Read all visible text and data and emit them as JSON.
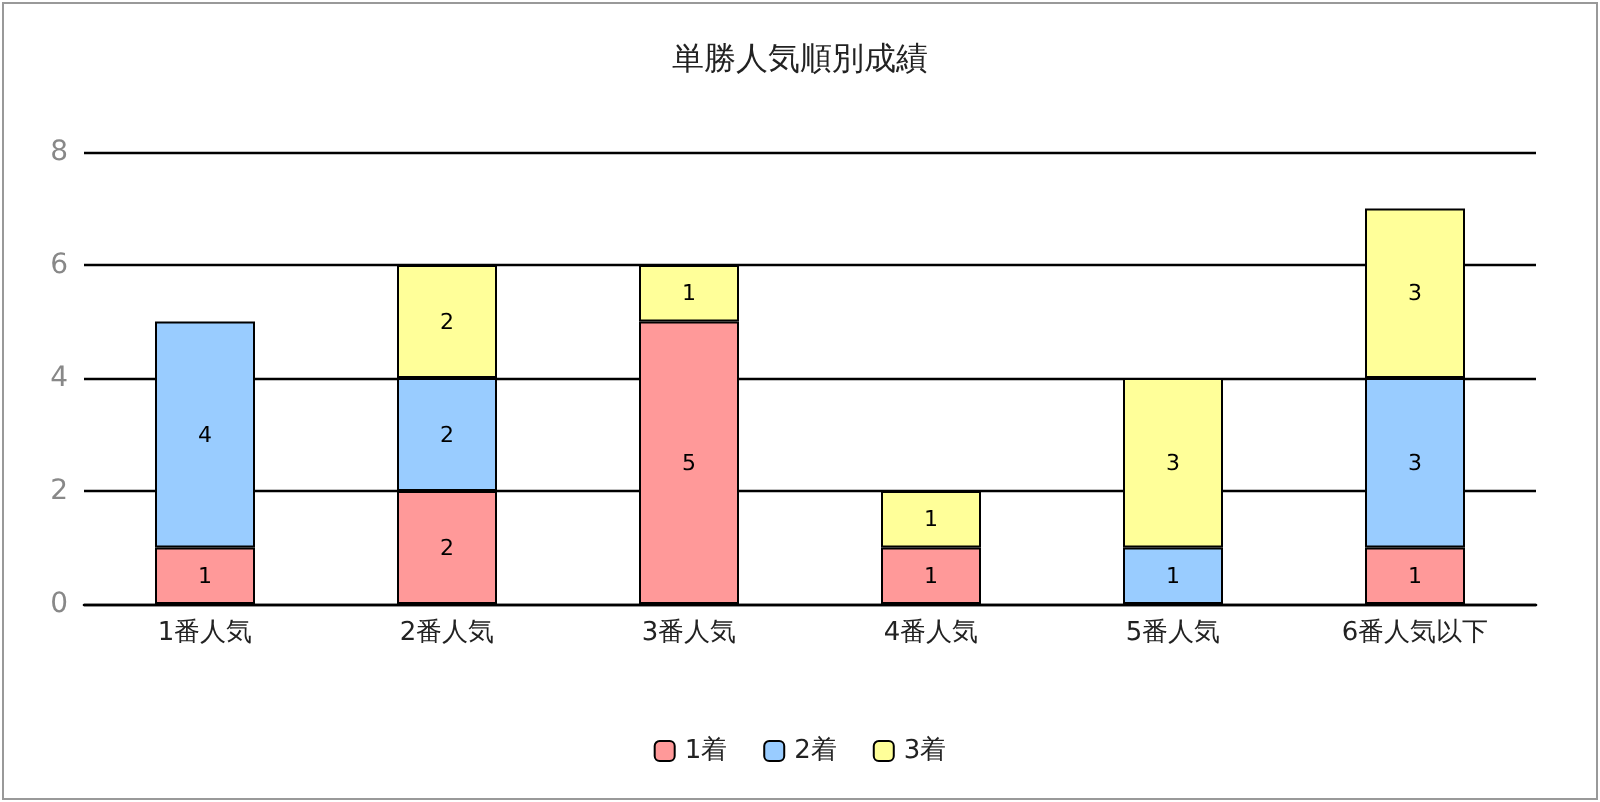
{
  "chart_data": {
    "type": "bar",
    "title": "単勝人気順別成績",
    "categories": [
      "1番人気",
      "2番人気",
      "3番人気",
      "4番人気",
      "5番人気",
      "6番人気以下"
    ],
    "series": [
      {
        "name": "1着",
        "color": "#ff9999",
        "values": [
          1,
          2,
          5,
          1,
          null,
          1
        ]
      },
      {
        "name": "2着",
        "color": "#99ccff",
        "values": [
          4,
          2,
          null,
          null,
          1,
          3
        ]
      },
      {
        "name": "3着",
        "color": "#ffff99",
        "values": [
          null,
          2,
          1,
          1,
          3,
          3
        ]
      }
    ],
    "stacked": true,
    "ylim": [
      0,
      8
    ],
    "yticks": [
      0,
      2,
      4,
      6,
      8
    ],
    "grid": "y",
    "legend": "bottom",
    "data_labels": true
  }
}
